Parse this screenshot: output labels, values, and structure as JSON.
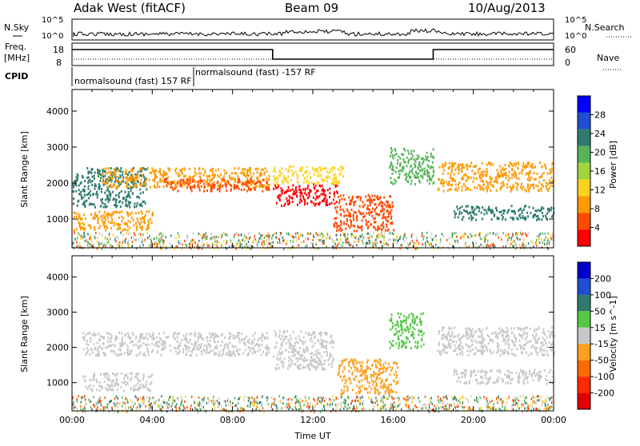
{
  "header": {
    "site": "Adak West (fitACF)",
    "beam": "Beam 09",
    "date": "10/Aug/2013"
  },
  "noise_panel": {
    "left_label": "N.Sky",
    "right_label": "N.Search",
    "left_ticks": [
      "10^5",
      "10^0"
    ],
    "right_ticks": [
      "10^5",
      "10^0"
    ]
  },
  "freq_panel": {
    "left_label_1": "Freq.",
    "left_label_2": "[MHz]",
    "left_ticks": [
      "18",
      "8"
    ],
    "right_label": "Nave",
    "right_ticks": [
      "60",
      "0"
    ],
    "freq_mhz_segments": [
      {
        "start_h": 0,
        "end_h": 10,
        "value": 16
      },
      {
        "start_h": 10,
        "end_h": 18,
        "value": 10
      },
      {
        "start_h": 18,
        "end_h": 24,
        "value": 16
      }
    ]
  },
  "cpid_panel": {
    "label": "CPID",
    "programs": [
      {
        "text": "normalsound (fast) 157 RF",
        "start_h": 0
      },
      {
        "text": "normalsound (fast) -157 RF",
        "start_h": 6
      }
    ]
  },
  "chart_data": [
    {
      "type": "heatmap",
      "name": "power",
      "ylabel": "Slant Range [km]",
      "ylim": [
        200,
        4600
      ],
      "yticks": [
        1000,
        2000,
        3000,
        4000
      ],
      "xlim_hours": [
        0,
        24
      ],
      "colorbar": {
        "label": "Power [dB]",
        "ticks": [
          "28",
          "24",
          "20",
          "16",
          "12",
          "8",
          "4"
        ],
        "colors": [
          "#0000ff",
          "#1f4ed0",
          "#2f7c6e",
          "#56b35a",
          "#9fd63d",
          "#ffd21e",
          "#ff9a00",
          "#ff4a00",
          "#ff0000"
        ]
      },
      "bands": [
        {
          "t0": 0.0,
          "t1": 3.7,
          "r0": 1350,
          "r1": 2450,
          "color": "#2f7c6e"
        },
        {
          "t0": 1.5,
          "t1": 9.8,
          "r0": 1900,
          "r1": 2450,
          "color": "#ff9a00"
        },
        {
          "t0": 4.5,
          "t1": 9.8,
          "r0": 1800,
          "r1": 2150,
          "color": "#ff4a00"
        },
        {
          "t0": 0.0,
          "t1": 4.0,
          "r0": 700,
          "r1": 1250,
          "color": "#ff9a00"
        },
        {
          "t0": 10.0,
          "t1": 13.2,
          "r0": 1400,
          "r1": 2000,
          "color": "#ff0000"
        },
        {
          "t0": 10.0,
          "t1": 13.5,
          "r0": 2000,
          "r1": 2500,
          "color": "#ffd21e"
        },
        {
          "t0": 13.0,
          "t1": 16.0,
          "r0": 700,
          "r1": 1700,
          "color": "#ff4a00"
        },
        {
          "t0": 15.8,
          "t1": 18.0,
          "r0": 2000,
          "r1": 3000,
          "color": "#56b35a"
        },
        {
          "t0": 18.2,
          "t1": 24.0,
          "r0": 1800,
          "r1": 2600,
          "color": "#ff9a00"
        },
        {
          "t0": 19.0,
          "t1": 24.0,
          "r0": 1000,
          "r1": 1400,
          "color": "#2f7c6e"
        }
      ]
    },
    {
      "type": "heatmap",
      "name": "velocity",
      "ylabel": "Slant Range [km]",
      "ylim": [
        200,
        4600
      ],
      "yticks": [
        1000,
        2000,
        3000,
        4000
      ],
      "xlim_hours": [
        0,
        24
      ],
      "xticks": [
        "00:00",
        "04:00",
        "08:00",
        "12:00",
        "16:00",
        "20:00",
        "00:00"
      ],
      "xlabel": "Time UT",
      "colorbar": {
        "label": "Velocity [m s^-1]",
        "ticks": [
          "200",
          "100",
          "50",
          "15",
          "-15",
          "-50",
          "-100",
          "-200"
        ],
        "colors": [
          "#0000cc",
          "#1f4ed0",
          "#2f7c6e",
          "#54c845",
          "#c8c8c8",
          "#ffa01e",
          "#ff6a00",
          "#ff2a00",
          "#e00000"
        ]
      },
      "bands": [
        {
          "t0": 0.5,
          "t1": 9.8,
          "r0": 1800,
          "r1": 2450,
          "color": "#c8c8c8"
        },
        {
          "t0": 0.5,
          "t1": 4.0,
          "r0": 800,
          "r1": 1300,
          "color": "#c8c8c8"
        },
        {
          "t0": 10.0,
          "t1": 13.0,
          "r0": 1400,
          "r1": 2500,
          "color": "#c8c8c8"
        },
        {
          "t0": 13.2,
          "t1": 16.2,
          "r0": 700,
          "r1": 1700,
          "color": "#ffa01e"
        },
        {
          "t0": 18.2,
          "t1": 24.0,
          "r0": 1800,
          "r1": 2600,
          "color": "#c8c8c8"
        },
        {
          "t0": 19.0,
          "t1": 24.0,
          "r0": 1000,
          "r1": 1400,
          "color": "#c8c8c8"
        },
        {
          "t0": 15.8,
          "t1": 17.5,
          "r0": 2000,
          "r1": 3000,
          "color": "#54c845"
        }
      ]
    }
  ]
}
